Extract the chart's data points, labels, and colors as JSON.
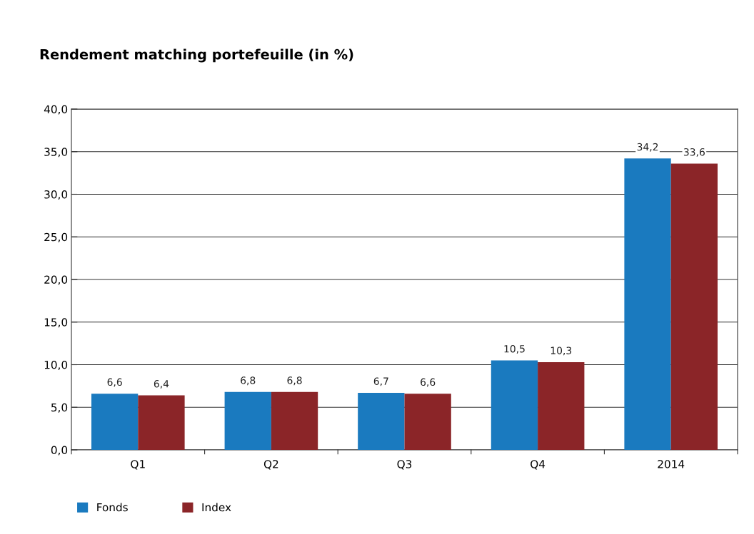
{
  "chart_data": {
    "type": "bar",
    "title": "Rendement matching portefeuille (in %)",
    "categories": [
      "Q1",
      "Q2",
      "Q3",
      "Q4",
      "2014"
    ],
    "series": [
      {
        "name": "Fonds",
        "color": "#1a7abf",
        "values": [
          6.6,
          6.8,
          6.7,
          10.5,
          34.2
        ],
        "value_labels": [
          "6,6",
          "6,8",
          "6,7",
          "10,5",
          "34,2"
        ]
      },
      {
        "name": "Index",
        "color": "#8b2528",
        "values": [
          6.4,
          6.8,
          6.6,
          10.3,
          33.6
        ],
        "value_labels": [
          "6,4",
          "6,8",
          "6,6",
          "10,3",
          "33,6"
        ]
      }
    ],
    "ylim": [
      0,
      40
    ],
    "yticks": [
      {
        "value": 0,
        "label": "0,0"
      },
      {
        "value": 5,
        "label": "5,0"
      },
      {
        "value": 10,
        "label": "10,0"
      },
      {
        "value": 15,
        "label": "15,0"
      },
      {
        "value": 20,
        "label": "20,0"
      },
      {
        "value": 25,
        "label": "25,0"
      },
      {
        "value": 30,
        "label": "30,0"
      },
      {
        "value": 35,
        "label": "35,0"
      },
      {
        "value": 40,
        "label": "40,0"
      }
    ],
    "grid": "y",
    "legend": "bottom left"
  }
}
